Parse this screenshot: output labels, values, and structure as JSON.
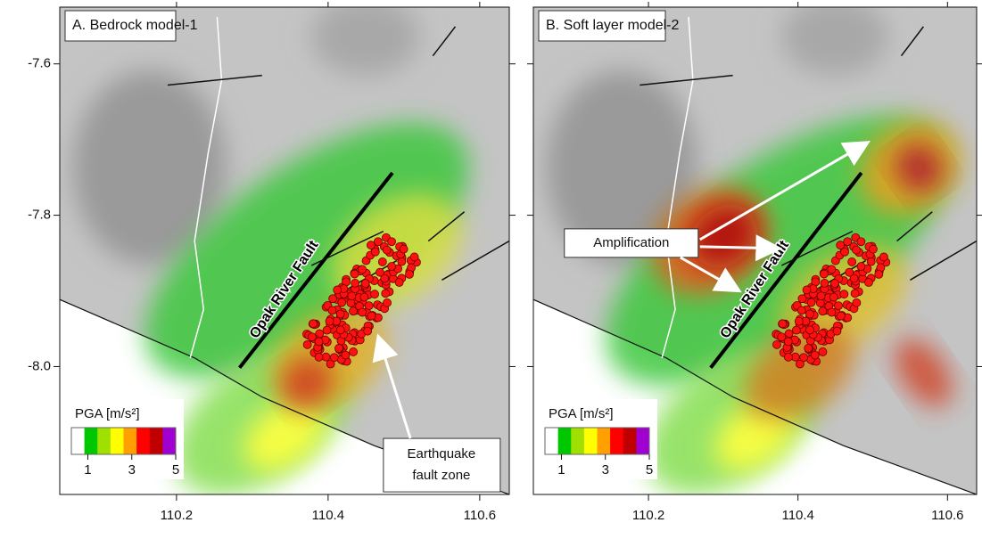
{
  "panels": [
    {
      "title": "A. Bedrock model-1",
      "fault_label": "Opak River Fault",
      "annotation": [
        "Earthquake",
        "fault zone"
      ],
      "y_labels": true
    },
    {
      "title": "B. Soft layer model-2",
      "fault_label": "Opak River Fault",
      "annotation": [
        "Amplification"
      ],
      "y_labels": false
    }
  ],
  "xlim": [
    110.046,
    110.639
  ],
  "ylim": [
    -7.525,
    -8.169
  ],
  "xticks": [
    110.2,
    110.4,
    110.6
  ],
  "yticks": [
    -7.6,
    -7.8,
    {
      "value": -8.0,
      "label": "-8.0"
    }
  ],
  "legend": {
    "title": "PGA [m/s²]",
    "ticks": [
      1,
      3,
      5
    ],
    "clim": [
      0.25,
      5
    ],
    "colors": [
      "#ffffff",
      "#00c800",
      "#a0e000",
      "#ffff00",
      "#ffa000",
      "#ff0000",
      "#c00000",
      "#a000d0"
    ]
  }
}
